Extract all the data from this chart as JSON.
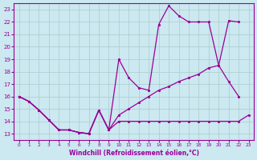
{
  "xlabel": "Windchill (Refroidissement éolien,°C)",
  "bg_color": "#cce8f0",
  "line_color": "#990099",
  "grid_color": "#aacccc",
  "x_ticks": [
    0,
    1,
    2,
    3,
    4,
    5,
    6,
    7,
    8,
    9,
    10,
    11,
    12,
    13,
    14,
    15,
    16,
    17,
    18,
    19,
    20,
    21,
    22,
    23
  ],
  "y_ticks": [
    13,
    14,
    15,
    16,
    17,
    18,
    19,
    20,
    21,
    22,
    23
  ],
  "xlim": [
    -0.5,
    23.5
  ],
  "ylim": [
    12.5,
    23.5
  ],
  "line1_x": [
    0,
    1,
    2,
    3,
    4,
    5,
    6,
    7,
    8,
    9,
    10,
    11,
    12,
    13,
    14,
    15,
    16,
    17,
    18,
    19,
    20,
    21,
    22
  ],
  "line1_y": [
    16.0,
    15.6,
    14.9,
    14.1,
    13.3,
    13.3,
    13.1,
    13.0,
    14.9,
    13.3,
    19.0,
    17.5,
    16.7,
    16.5,
    21.8,
    23.3,
    22.5,
    22.0,
    22.0,
    22.0,
    18.5,
    17.2,
    16.0
  ],
  "line2_x": [
    0,
    1,
    2,
    3,
    4,
    5,
    6,
    7,
    8,
    9,
    10,
    11,
    12,
    13,
    14,
    15,
    16,
    17,
    18,
    19,
    20,
    21,
    22,
    23
  ],
  "line2_y": [
    16.0,
    15.6,
    14.9,
    14.1,
    13.3,
    13.3,
    13.1,
    13.0,
    14.9,
    13.3,
    14.0,
    14.0,
    14.0,
    14.0,
    14.0,
    14.0,
    14.0,
    14.0,
    14.0,
    14.0,
    14.0,
    14.0,
    14.0,
    14.5
  ],
  "line3_x": [
    0,
    1,
    2,
    3,
    4,
    5,
    6,
    7,
    8,
    9,
    10,
    11,
    12,
    13,
    14,
    15,
    16,
    17,
    18,
    19,
    20,
    21,
    22
  ],
  "line3_y": [
    16.0,
    15.6,
    14.9,
    14.1,
    13.3,
    13.3,
    13.1,
    13.0,
    14.9,
    13.3,
    14.5,
    15.0,
    15.5,
    16.0,
    16.5,
    16.8,
    17.2,
    17.5,
    17.8,
    18.3,
    18.5,
    22.1,
    22.0
  ]
}
